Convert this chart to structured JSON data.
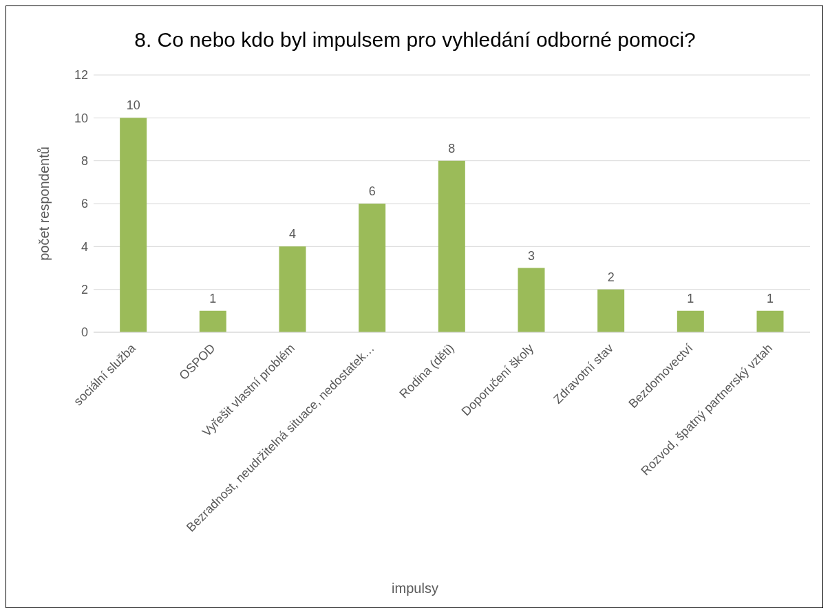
{
  "chart_data": {
    "type": "bar",
    "title": "8. Co nebo kdo byl impulsem pro vyhledání odborné pomoci?",
    "xlabel": "impulsy",
    "ylabel": "počet respondentů",
    "categories": [
      "sociální služba",
      "OSPOD",
      "Vyřešit vlastní problém",
      "Bezradnost, neudržitelná situace, nedostatek…",
      "Rodina (děti)",
      "Doporučení školy",
      "Zdravotní stav",
      "Bezdomovectví",
      "Rozvod, špatný partnerský vztah"
    ],
    "values": [
      10,
      1,
      4,
      6,
      8,
      3,
      2,
      1,
      1
    ],
    "color": "#9bbb59",
    "ylim": [
      0,
      12
    ],
    "yticks": [
      0,
      2,
      4,
      6,
      8,
      10,
      12
    ],
    "grid": "y",
    "data_labels": true
  }
}
